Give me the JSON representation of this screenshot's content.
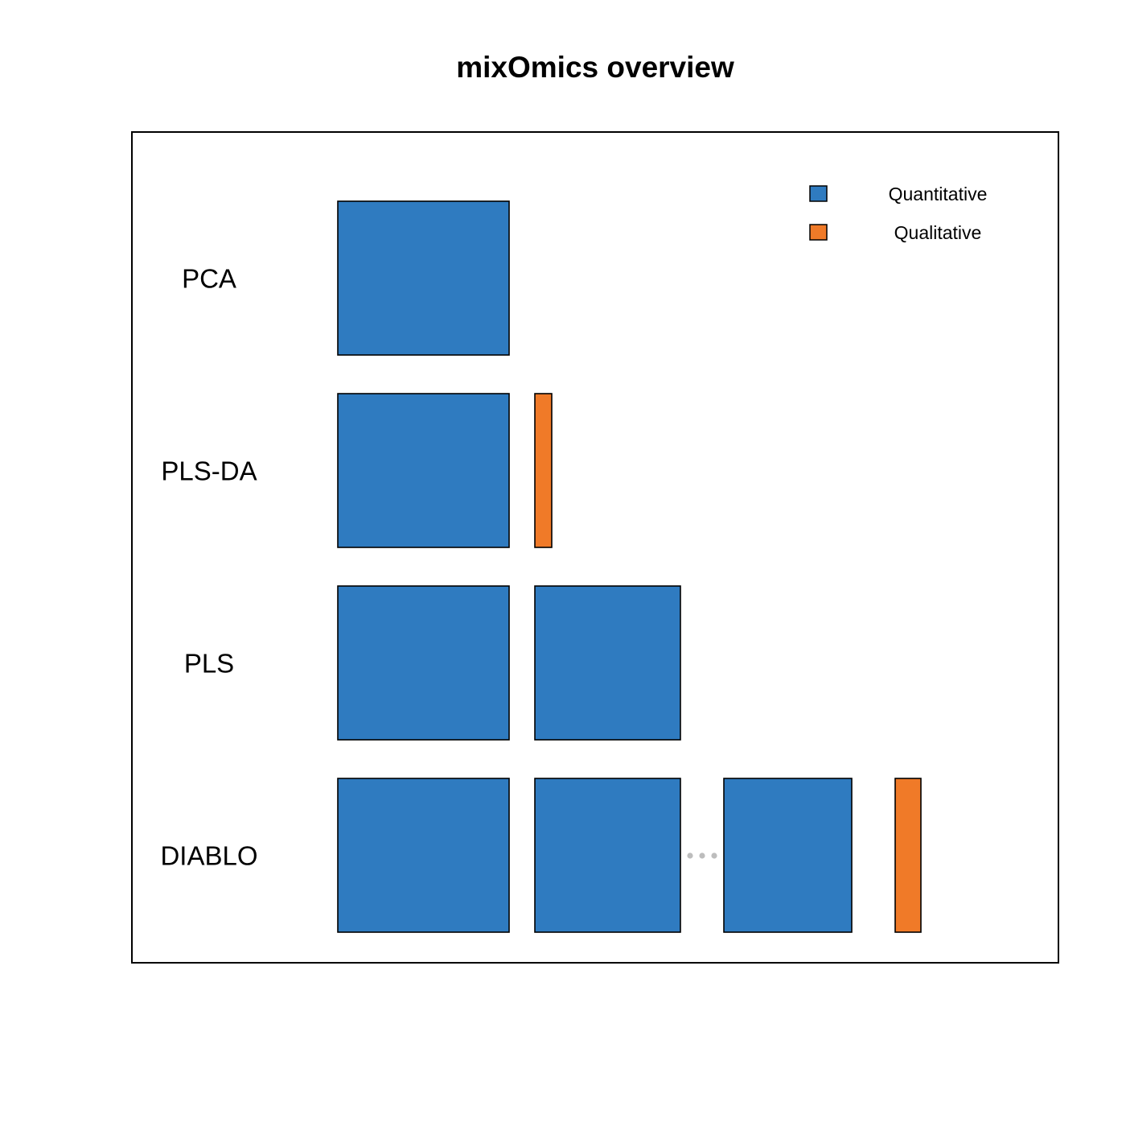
{
  "title": "mixOmics overview",
  "colors": {
    "quantitative": "#2F7BC0",
    "qualitative": "#F07A28",
    "outline": "#000000",
    "ellipsis": "#BDBDBD"
  },
  "legend": {
    "placement": "top-right",
    "items": [
      {
        "key": "quantitative",
        "label": "Quantitative"
      },
      {
        "key": "qualitative",
        "label": "Qualitative"
      }
    ]
  },
  "methods": [
    {
      "name": "PCA",
      "blocks": [
        "quantitative-large"
      ]
    },
    {
      "name": "PLS-DA",
      "blocks": [
        "quantitative-large",
        "qualitative-outcome"
      ]
    },
    {
      "name": "PLS",
      "blocks": [
        "quantitative-large",
        "quantitative-medium"
      ]
    },
    {
      "name": "DIABLO",
      "blocks": [
        "quantitative-large",
        "quantitative-medium",
        "ellipsis",
        "quantitative-small",
        "qualitative-outcome"
      ]
    }
  ]
}
